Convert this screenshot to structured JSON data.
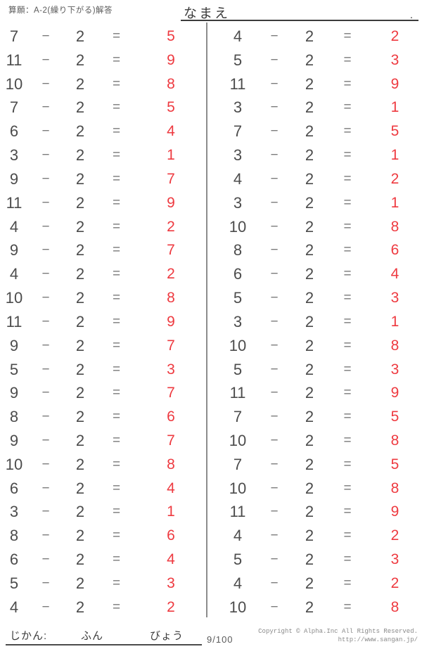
{
  "header": {
    "title": "算願：A-2(繰り下がる)解答",
    "name_label": "なまえ",
    "name_line_dot": "."
  },
  "worksheet": {
    "operator": "−",
    "equals": "=",
    "answer_color": "#ee3a40",
    "columns": [
      {
        "problems": [
          {
            "a": "7",
            "b": "2",
            "ans": "5"
          },
          {
            "a": "11",
            "b": "2",
            "ans": "9"
          },
          {
            "a": "10",
            "b": "2",
            "ans": "8"
          },
          {
            "a": "7",
            "b": "2",
            "ans": "5"
          },
          {
            "a": "6",
            "b": "2",
            "ans": "4"
          },
          {
            "a": "3",
            "b": "2",
            "ans": "1"
          },
          {
            "a": "9",
            "b": "2",
            "ans": "7"
          },
          {
            "a": "11",
            "b": "2",
            "ans": "9"
          },
          {
            "a": "4",
            "b": "2",
            "ans": "2"
          },
          {
            "a": "9",
            "b": "2",
            "ans": "7"
          },
          {
            "a": "4",
            "b": "2",
            "ans": "2"
          },
          {
            "a": "10",
            "b": "2",
            "ans": "8"
          },
          {
            "a": "11",
            "b": "2",
            "ans": "9"
          },
          {
            "a": "9",
            "b": "2",
            "ans": "7"
          },
          {
            "a": "5",
            "b": "2",
            "ans": "3"
          },
          {
            "a": "9",
            "b": "2",
            "ans": "7"
          },
          {
            "a": "8",
            "b": "2",
            "ans": "6"
          },
          {
            "a": "9",
            "b": "2",
            "ans": "7"
          },
          {
            "a": "10",
            "b": "2",
            "ans": "8"
          },
          {
            "a": "6",
            "b": "2",
            "ans": "4"
          },
          {
            "a": "3",
            "b": "2",
            "ans": "1"
          },
          {
            "a": "8",
            "b": "2",
            "ans": "6"
          },
          {
            "a": "6",
            "b": "2",
            "ans": "4"
          },
          {
            "a": "5",
            "b": "2",
            "ans": "3"
          },
          {
            "a": "4",
            "b": "2",
            "ans": "2"
          }
        ]
      },
      {
        "problems": [
          {
            "a": "4",
            "b": "2",
            "ans": "2"
          },
          {
            "a": "5",
            "b": "2",
            "ans": "3"
          },
          {
            "a": "11",
            "b": "2",
            "ans": "9"
          },
          {
            "a": "3",
            "b": "2",
            "ans": "1"
          },
          {
            "a": "7",
            "b": "2",
            "ans": "5"
          },
          {
            "a": "3",
            "b": "2",
            "ans": "1"
          },
          {
            "a": "4",
            "b": "2",
            "ans": "2"
          },
          {
            "a": "3",
            "b": "2",
            "ans": "1"
          },
          {
            "a": "10",
            "b": "2",
            "ans": "8"
          },
          {
            "a": "8",
            "b": "2",
            "ans": "6"
          },
          {
            "a": "6",
            "b": "2",
            "ans": "4"
          },
          {
            "a": "5",
            "b": "2",
            "ans": "3"
          },
          {
            "a": "3",
            "b": "2",
            "ans": "1"
          },
          {
            "a": "10",
            "b": "2",
            "ans": "8"
          },
          {
            "a": "5",
            "b": "2",
            "ans": "3"
          },
          {
            "a": "11",
            "b": "2",
            "ans": "9"
          },
          {
            "a": "7",
            "b": "2",
            "ans": "5"
          },
          {
            "a": "10",
            "b": "2",
            "ans": "8"
          },
          {
            "a": "7",
            "b": "2",
            "ans": "5"
          },
          {
            "a": "10",
            "b": "2",
            "ans": "8"
          },
          {
            "a": "11",
            "b": "2",
            "ans": "9"
          },
          {
            "a": "4",
            "b": "2",
            "ans": "2"
          },
          {
            "a": "5",
            "b": "2",
            "ans": "3"
          },
          {
            "a": "4",
            "b": "2",
            "ans": "2"
          },
          {
            "a": "10",
            "b": "2",
            "ans": "8"
          }
        ]
      }
    ]
  },
  "footer": {
    "time_label": "じかん:",
    "minutes_label": "ふん",
    "seconds_label": "びょう",
    "score": "9/100",
    "copyright": "Copyright © Alpha.Inc All Rights Reserved.",
    "url": "http://www.sangan.jp/"
  }
}
